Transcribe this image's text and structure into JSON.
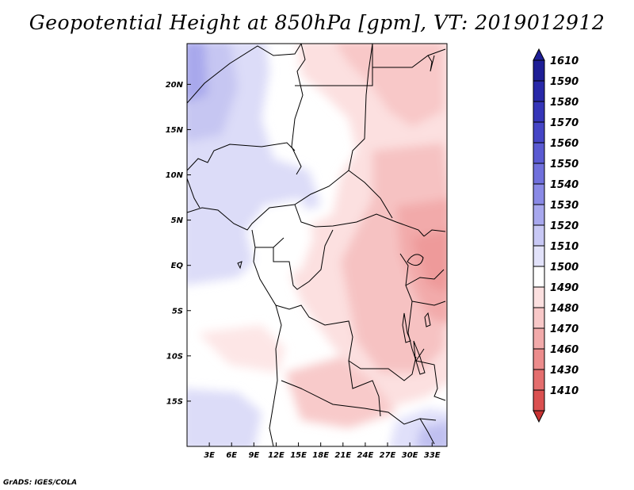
{
  "title": "Geopotential Height at 850hPa [gpm], VT: 2019012912",
  "footer": "GrADS: IGES/COLA",
  "map": {
    "lon_range": [
      0,
      35
    ],
    "lat_range": [
      -20,
      24.5
    ],
    "xaxis_ticks": [
      {
        "lon": 3,
        "label": "3E"
      },
      {
        "lon": 6,
        "label": "6E"
      },
      {
        "lon": 9,
        "label": "9E"
      },
      {
        "lon": 12,
        "label": "12E"
      },
      {
        "lon": 15,
        "label": "15E"
      },
      {
        "lon": 18,
        "label": "18E"
      },
      {
        "lon": 21,
        "label": "21E"
      },
      {
        "lon": 24,
        "label": "24E"
      },
      {
        "lon": 27,
        "label": "27E"
      },
      {
        "lon": 30,
        "label": "30E"
      },
      {
        "lon": 33,
        "label": "33E"
      }
    ],
    "yaxis_ticks": [
      {
        "lat": 20,
        "label": "20N"
      },
      {
        "lat": 15,
        "label": "15N"
      },
      {
        "lat": 10,
        "label": "10N"
      },
      {
        "lat": 5,
        "label": "5N"
      },
      {
        "lat": 0,
        "label": "EQ"
      },
      {
        "lat": -5,
        "label": "5S"
      },
      {
        "lat": -10,
        "label": "10S"
      },
      {
        "lat": -15,
        "label": "15S"
      }
    ]
  },
  "colorbar": {
    "levels": [
      {
        "label": "1610",
        "color": "#1e1e96"
      },
      {
        "label": "1590",
        "color": "#2828a8"
      },
      {
        "label": "1580",
        "color": "#3535b8"
      },
      {
        "label": "1570",
        "color": "#4545c6"
      },
      {
        "label": "1560",
        "color": "#5a5ad2"
      },
      {
        "label": "1550",
        "color": "#7070dc"
      },
      {
        "label": "1540",
        "color": "#8a8ae6"
      },
      {
        "label": "1530",
        "color": "#a8a8ee"
      },
      {
        "label": "1520",
        "color": "#c8c8f5"
      },
      {
        "label": "1510",
        "color": "#e2e2fa"
      },
      {
        "label": "1500",
        "color": "#ffffff"
      },
      {
        "label": "1490",
        "color": "#fce0e0"
      },
      {
        "label": "1480",
        "color": "#f8c8c8"
      },
      {
        "label": "1470",
        "color": "#f2aaaa"
      },
      {
        "label": "1460",
        "color": "#ec8c8c"
      },
      {
        "label": "1430",
        "color": "#e46e6e"
      },
      {
        "label": "1410",
        "color": "#da5050"
      }
    ],
    "bottom_color": "#c83232"
  }
}
